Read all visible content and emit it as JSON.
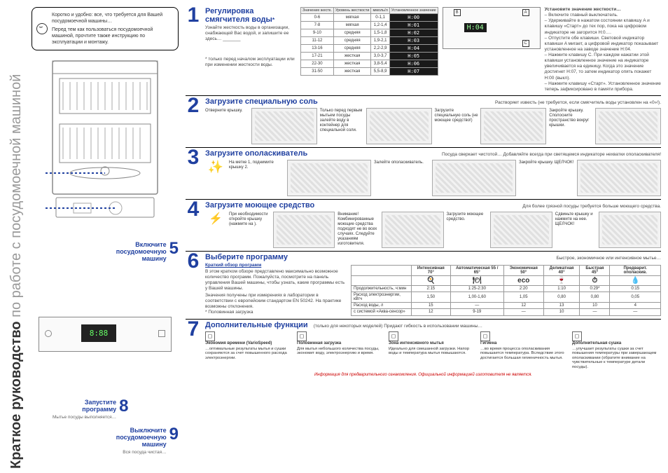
{
  "vtitle_bold": "Краткое руководство",
  "vtitle_gray": "по работе с посудомоечной машиной",
  "tipbox_p1": "Коротко и удобно: все, что требуется для Вашей посудомоечной машины…",
  "tipbox_p2": "Перед тем как пользоваться посудомоечной машиной, прочтите также инструкцию по эксплуатации и монтажу.",
  "step1": {
    "title1": "Регулировка",
    "title2": "смягчителя воды",
    "desc": "Узнайте жесткость воды в организации, снабжающей Вас водой, и запишите ее здесь… _______",
    "foot": "* только перед началом эксплуатации или при изменении жесткости воды.",
    "table": {
      "headers": [
        "Значение жестк.",
        "Уровень жесткости",
        "ммоль/л",
        "Установленное значение"
      ],
      "rows": [
        [
          "0-6",
          "мягкая",
          "0-1,1",
          "H:00"
        ],
        [
          "7-8",
          "мягкая",
          "1,2-1,4",
          "H:01"
        ],
        [
          "9-10",
          "средняя",
          "1,5-1,8",
          "H:02"
        ],
        [
          "11-12",
          "средняя",
          "1,9-2,1",
          "H:03"
        ],
        [
          "13-16",
          "средняя",
          "2,2-2,9",
          "H:04"
        ],
        [
          "17-21",
          "жесткая",
          "3,0-3,7",
          "H:05"
        ],
        [
          "22-30",
          "жесткая",
          "3,8-5,4",
          "H:06"
        ],
        [
          "31-50",
          "жесткая",
          "5,5-8,9",
          "H:07"
        ]
      ]
    },
    "display_val": "H:04",
    "right_title": "Установите значение жесткости…",
    "right_b1": "– Включите главный выключатель.",
    "right_b2": "– Удерживайте в нажатом состоянии клавишу A и клавишу «Старт» до тех пор, пока на цифровом индикаторе не загорится H:0….",
    "right_b3": "– Отпустите обе клавиши. Световой индикатор клавиши A мигает, а цифровой индикатор показывает установленное на заводе значение H:04.",
    "right_b4": "– Нажмите клавишу C. При каждом нажатии этой клавиши установленное значение на индикаторе увеличивается на единицу. Когда это значение достигнет H:07, то затем индикатор опять покажет H:00 (выкл).",
    "right_b5": "– Нажмите клавишу «Старт». Установленное значение теперь зафиксировано в памяти прибора."
  },
  "step2": {
    "title": "Загрузите специальную соль",
    "note": "Растворяет известь (не требуется, если смягчитель воды установлен на «0»!).",
    "caps": [
      "Отверните крышку.",
      "Только перед первым мытьем посуды залейте воду в контейнер для специальной соли.",
      "Загрузите специальную соль (не моющее средство!)",
      "Закройте крышку. Сполосните пространство вокруг крышки."
    ]
  },
  "step3": {
    "title": "Загрузите ополаскиватель",
    "note": "Посуда сверкает чистотой…      Добавляйте всегда при светящемся индикаторе нехватки ополаскивателя!",
    "caps": [
      "На метке 1, поднимите крышку 2.",
      "Залейте ополаскиватель.",
      "Закройте крышку. ЩЕЛЧОК!"
    ]
  },
  "step4": {
    "title": "Загрузите моющее средство",
    "note": "Для более грязной посуды требуется больше моющего средства.",
    "caps": [
      "При необходимости откройте крышку (нажмите на ).",
      "Внимание! Комбинированные моющие средства подходят не во всех случаях. Следуйте указаниям изготовителя.",
      "Загрузите моющее средство.",
      "Сдвиньте крышку и нажмите на нее. ЩЕЛЧОК!"
    ]
  },
  "step5": {
    "title1": "Включите",
    "title2": "посудомоечную",
    "title3": "машину"
  },
  "step6": {
    "title": "Выберите программу",
    "note": "Быстрое, экономичное или интенсивное мытье…",
    "sub": "Краткий обзор программ",
    "desc": "В этом кратком обзоре представлено максимально возможное количество программ. Пожалуйста, посмотрите на панель управления Вашей машины, чтобы узнать, какие программы есть у Вашей машины.",
    "desc2": "Значения получены при измерениях в лаборатории в соответствии с европейским стандартом EN 50242. На практике возможны отклонения.",
    "foot": "* Половинная загрузка",
    "table": {
      "cols": [
        "",
        "Интенсивная 70°",
        "Автоматическая 55 / 65°",
        "Экономичная 50°",
        "Деликатная 40°",
        "Быстрая 45°",
        "Предварит. ополаскив."
      ],
      "icons": [
        "",
        "🍳",
        "🍽",
        "eco",
        "🍷",
        "⏱",
        "💧"
      ],
      "rows": [
        [
          "Продолжительность, ч:мин",
          "2:15",
          "1:25-2:30",
          "2:20",
          "1:10",
          "0:29*",
          "0:15"
        ],
        [
          "Расход электроэнергии, кВтч",
          "1,50",
          "1,00-1,60",
          "1,05",
          "0,80",
          "0,80",
          "0,05"
        ],
        [
          "Расход воды, л",
          "15",
          "—",
          "12",
          "13",
          "10",
          "4"
        ],
        [
          "с системой «Аква-сенсор»",
          "12",
          "9-19",
          "—",
          "10",
          "—",
          "—"
        ]
      ]
    }
  },
  "step7": {
    "title": "Дополнительные функции",
    "note": "(только для некоторых моделей)            Придают гибкость в использовании машины…",
    "funcs": [
      {
        "name": "Экономия времени (VarioSpeed)",
        "desc": "…оптимальные результаты мытья и сушки сохраняются за счет повышенного расхода электроэнергии."
      },
      {
        "name": "Половинная загрузка",
        "desc": "Для мытья небольшого количества посуды, экономит воду, электроэнергию и время."
      },
      {
        "name": "Зона интенсивного мытья",
        "desc": "Идеально для смешанной загрузки. Напор воды и температура мытья повышаются."
      },
      {
        "name": "Гигиена",
        "desc": "…во время процесса ополаскивания повышается температура. Вследствие этого достигается большая гигиеничность мытья."
      },
      {
        "name": "Дополнительная сушка",
        "desc": "…улучшает результаты сушки за счет повышения температуры при завершающем ополаскивании (обратите внимание на чувствительные к температуре детали посуды)."
      }
    ]
  },
  "step8": {
    "title1": "Запустите",
    "title2": "программу",
    "sub": "Мытье посуды выполняется…"
  },
  "step9": {
    "title1": "Выключите",
    "title2": "посудомоечную",
    "title3": "машину",
    "sub": "Вся посуда чистая…"
  },
  "redfoot": "Информация для предварительного ознакомления. Официальной информацией изготовителя не является."
}
